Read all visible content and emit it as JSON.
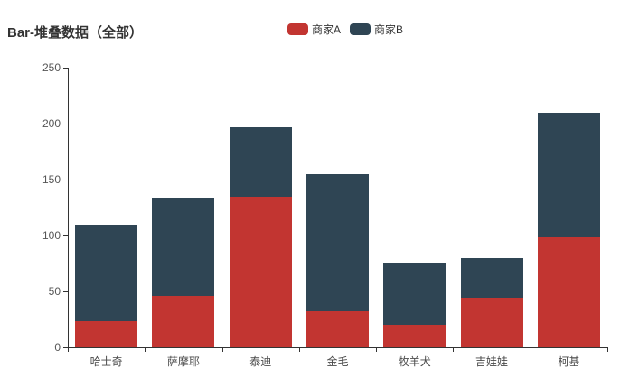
{
  "title": "Bar-堆叠数据（全部）",
  "colors": {
    "series_a": "#c23531",
    "series_b": "#2f4554",
    "axis_line": "#333333",
    "axis_label": "#555555",
    "title_text": "#333333",
    "background": "#ffffff"
  },
  "legend": {
    "items": [
      {
        "label": "商家A",
        "color": "#c23531"
      },
      {
        "label": "商家B",
        "color": "#2f4554"
      }
    ]
  },
  "chart_data": {
    "type": "bar",
    "stacked": true,
    "title": "Bar-堆叠数据（全部）",
    "categories": [
      "哈士奇",
      "萨摩耶",
      "泰迪",
      "金毛",
      "牧羊犬",
      "吉娃娃",
      "柯基"
    ],
    "series": [
      {
        "name": "商家A",
        "color": "#c23531",
        "values": [
          23,
          46,
          135,
          32,
          20,
          44,
          98
        ]
      },
      {
        "name": "商家B",
        "color": "#2f4554",
        "values": [
          87,
          87,
          62,
          123,
          55,
          36,
          112
        ]
      }
    ],
    "stack_totals": [
      110,
      133,
      197,
      155,
      75,
      80,
      210
    ],
    "xlabel": "",
    "ylabel": "",
    "ylim": [
      0,
      250
    ],
    "ytick_interval": 50,
    "ytick_labels": [
      "0",
      "50",
      "100",
      "150",
      "200",
      "250"
    ],
    "grid": false,
    "legend_position": "top-center",
    "bar_width_ratio": 0.81
  }
}
